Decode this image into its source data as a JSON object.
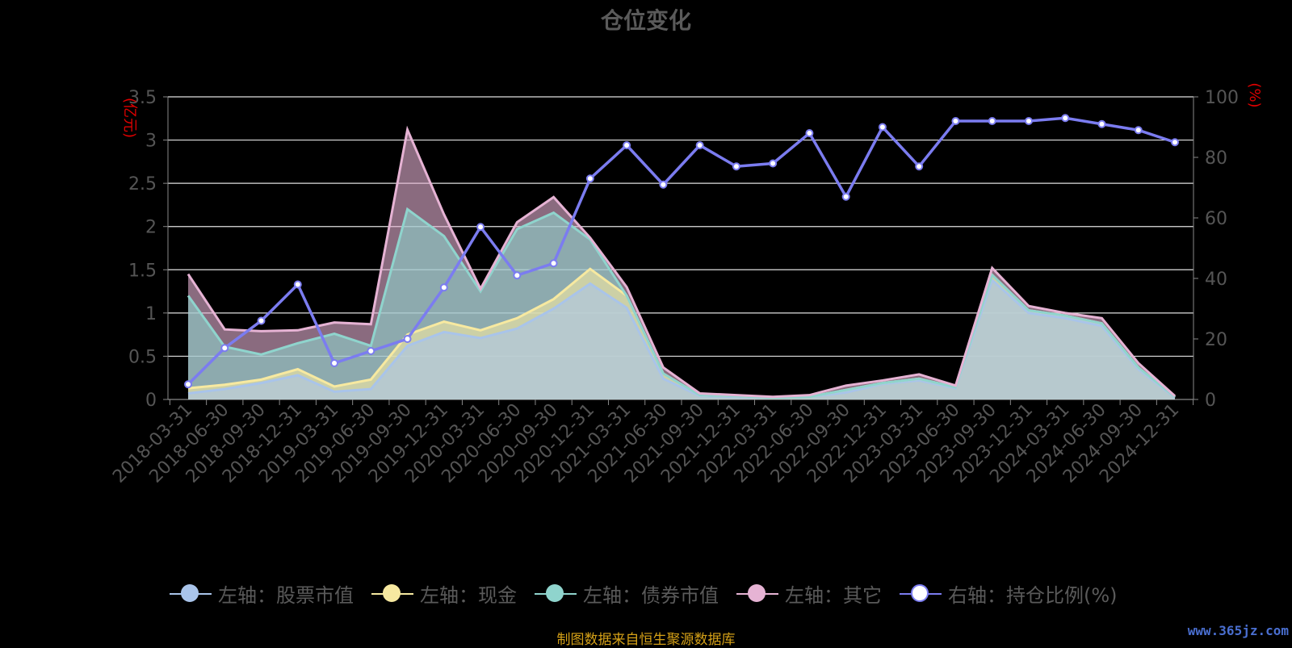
{
  "chart_data": {
    "type": "area",
    "title": "仓位变化",
    "y_left_unit": "(亿元)",
    "y_right_unit": "(%)",
    "y_left_range": [
      0,
      3.5
    ],
    "y_left_ticks": [
      "0",
      "0.5",
      "1",
      "1.5",
      "2",
      "2.5",
      "3",
      "3.5"
    ],
    "y_right_range": [
      0,
      100
    ],
    "y_right_ticks": [
      "0",
      "20",
      "40",
      "60",
      "80",
      "100"
    ],
    "grid": true,
    "legend_position": "bottom",
    "categories": [
      "2018-03-31",
      "2018-06-30",
      "2018-09-30",
      "2018-12-31",
      "2019-03-31",
      "2019-06-30",
      "2019-09-30",
      "2019-12-31",
      "2020-03-31",
      "2020-06-30",
      "2020-09-30",
      "2020-12-31",
      "2021-03-31",
      "2021-06-30",
      "2021-09-30",
      "2021-12-31",
      "2022-03-31",
      "2022-06-30",
      "2022-09-30",
      "2022-12-31",
      "2023-03-31",
      "2023-06-30",
      "2023-09-30",
      "2023-12-31",
      "2024-03-31",
      "2024-06-30",
      "2024-09-30",
      "2024-12-31"
    ],
    "x_tick_labels": [
      "2018-03-31",
      "2018-06-30",
      "2018-09-30",
      "2018-12-31",
      "2019-03-31",
      "2019-06-30",
      "2019-09-30",
      "2019-12-31",
      "2020-03-31",
      "2020-06-30",
      "2020-09-30",
      "2020-12-31",
      "2021-03-31",
      "2021-06-30",
      "2021-09-30",
      "2021-12-31",
      "2022-03-31",
      "2022-06-30",
      "2022-09-30",
      "2022-12-31",
      "2023-03-31",
      "2023-06-30",
      "2023-09-30",
      "2023-12-31",
      "2024-03-31",
      "2024-06-30",
      "2024-09-30",
      "2024-12-31"
    ],
    "stacked_series": [
      {
        "name": "左轴：股票市值",
        "color": "#a9c4ea",
        "values": [
          0.07,
          0.12,
          0.19,
          0.28,
          0.09,
          0.12,
          0.62,
          0.78,
          0.71,
          0.82,
          1.05,
          1.34,
          1.06,
          0.24,
          0.04,
          0.03,
          0.02,
          0.03,
          0.08,
          0.18,
          0.22,
          0.13,
          1.38,
          1.0,
          0.94,
          0.85,
          0.35,
          0.02
        ]
      },
      {
        "name": "左轴：现金",
        "color": "#f7e9a0",
        "values": [
          0.06,
          0.05,
          0.04,
          0.07,
          0.06,
          0.11,
          0.13,
          0.12,
          0.09,
          0.12,
          0.11,
          0.17,
          0.14,
          0.06,
          0.01,
          0.01,
          0.0,
          0.0,
          0.03,
          0.01,
          0.02,
          0.01,
          0.06,
          0.03,
          0.03,
          0.03,
          0.02,
          0.01
        ]
      },
      {
        "name": "左轴：债券市值",
        "color": "#8fd4cd",
        "values": [
          1.07,
          0.44,
          0.29,
          0.3,
          0.61,
          0.39,
          1.45,
          0.99,
          0.45,
          1.03,
          1.0,
          0.34,
          0.0,
          0.0,
          0.0,
          0.0,
          0.0,
          0.0,
          0.0,
          0.0,
          0.0,
          0.0,
          0.0,
          0.0,
          0.0,
          0.0,
          0.0,
          0.0
        ]
      },
      {
        "name": "左轴：其它",
        "color": "#e6b3d4",
        "values": [
          0.25,
          0.2,
          0.27,
          0.15,
          0.13,
          0.25,
          0.92,
          0.25,
          0.03,
          0.08,
          0.18,
          0.02,
          0.1,
          0.07,
          0.02,
          0.01,
          0.01,
          0.02,
          0.05,
          0.03,
          0.05,
          0.02,
          0.08,
          0.05,
          0.03,
          0.06,
          0.05,
          0.01
        ]
      }
    ],
    "line_series": {
      "name": "右轴：持仓比例(%)",
      "color": "#7b7cf0",
      "values": [
        5,
        17,
        26,
        38,
        12,
        16,
        20,
        37,
        57,
        41,
        45,
        73,
        84,
        71,
        84,
        77,
        78,
        88,
        67,
        90,
        77,
        92,
        92,
        92,
        93,
        91,
        89,
        85
      ]
    }
  },
  "source_note": "制图数据来自恒生聚源数据库",
  "watermark": "www.365jz.com"
}
